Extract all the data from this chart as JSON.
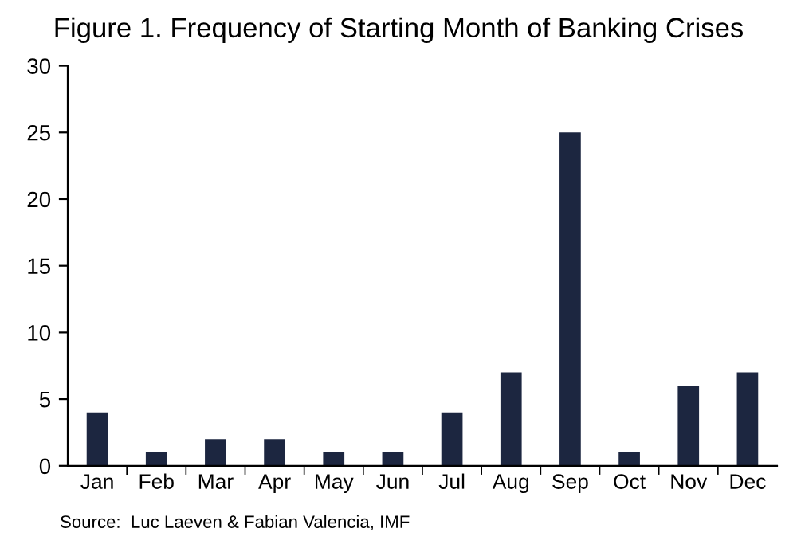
{
  "chart_data": {
    "type": "bar",
    "title": "Figure 1. Frequency of Starting Month of Banking Crises",
    "categories": [
      "Jan",
      "Feb",
      "Mar",
      "Apr",
      "May",
      "Jun",
      "Jul",
      "Aug",
      "Sep",
      "Oct",
      "Nov",
      "Dec"
    ],
    "values": [
      4,
      1,
      2,
      2,
      1,
      1,
      4,
      7,
      25,
      1,
      6,
      7
    ],
    "color": "#1c2640",
    "ylim": [
      0,
      30
    ],
    "yticks": [
      0,
      5,
      10,
      15,
      20,
      25,
      30
    ],
    "grid": false,
    "annotations": [
      "Source:  Luc Laeven & Fabian Valencia, IMF"
    ]
  }
}
